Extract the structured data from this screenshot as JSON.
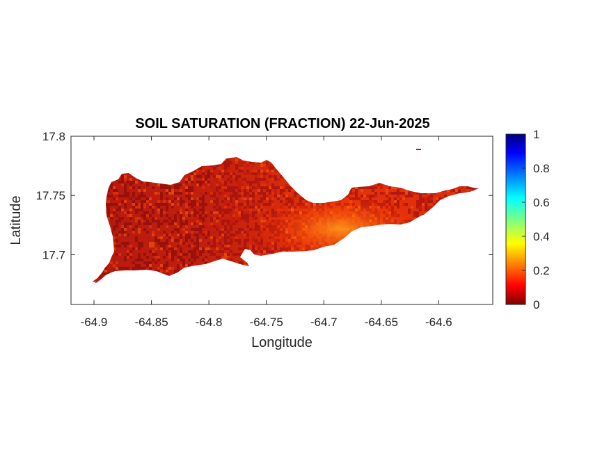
{
  "title": "SOIL SATURATION (FRACTION) 22-Jun-2025",
  "xlabel": "Longitude",
  "ylabel": "Latitude",
  "x_ticks": [
    "-64.9",
    "-64.85",
    "-64.8",
    "-64.75",
    "-64.7",
    "-64.65",
    "-64.6"
  ],
  "y_ticks": [
    "17.8",
    "17.75",
    "17.7"
  ],
  "colorbar": {
    "colormap": "jet",
    "range": [
      0,
      1
    ],
    "ticks": [
      "1",
      "0.8",
      "0.6",
      "0.4",
      "0.2",
      "0"
    ]
  },
  "chart_data": {
    "type": "heatmap",
    "title": "SOIL SATURATION (FRACTION) 22-Jun-2025",
    "xlabel": "Longitude",
    "ylabel": "Latitude",
    "xlim": [
      -64.92,
      -64.553
    ],
    "ylim": [
      17.658,
      17.8
    ],
    "x_tick_values": [
      -64.9,
      -64.85,
      -64.8,
      -64.75,
      -64.7,
      -64.65,
      -64.6
    ],
    "y_tick_values": [
      17.8,
      17.75,
      17.7
    ],
    "clim": [
      0,
      1
    ],
    "colormap": "jet",
    "region": "St. Croix island land mask",
    "typical_values": {
      "west": 0.05,
      "central": 0.12,
      "east_central": 0.2,
      "east": 0.13
    },
    "value_range_on_land": [
      0.0,
      0.3
    ]
  }
}
